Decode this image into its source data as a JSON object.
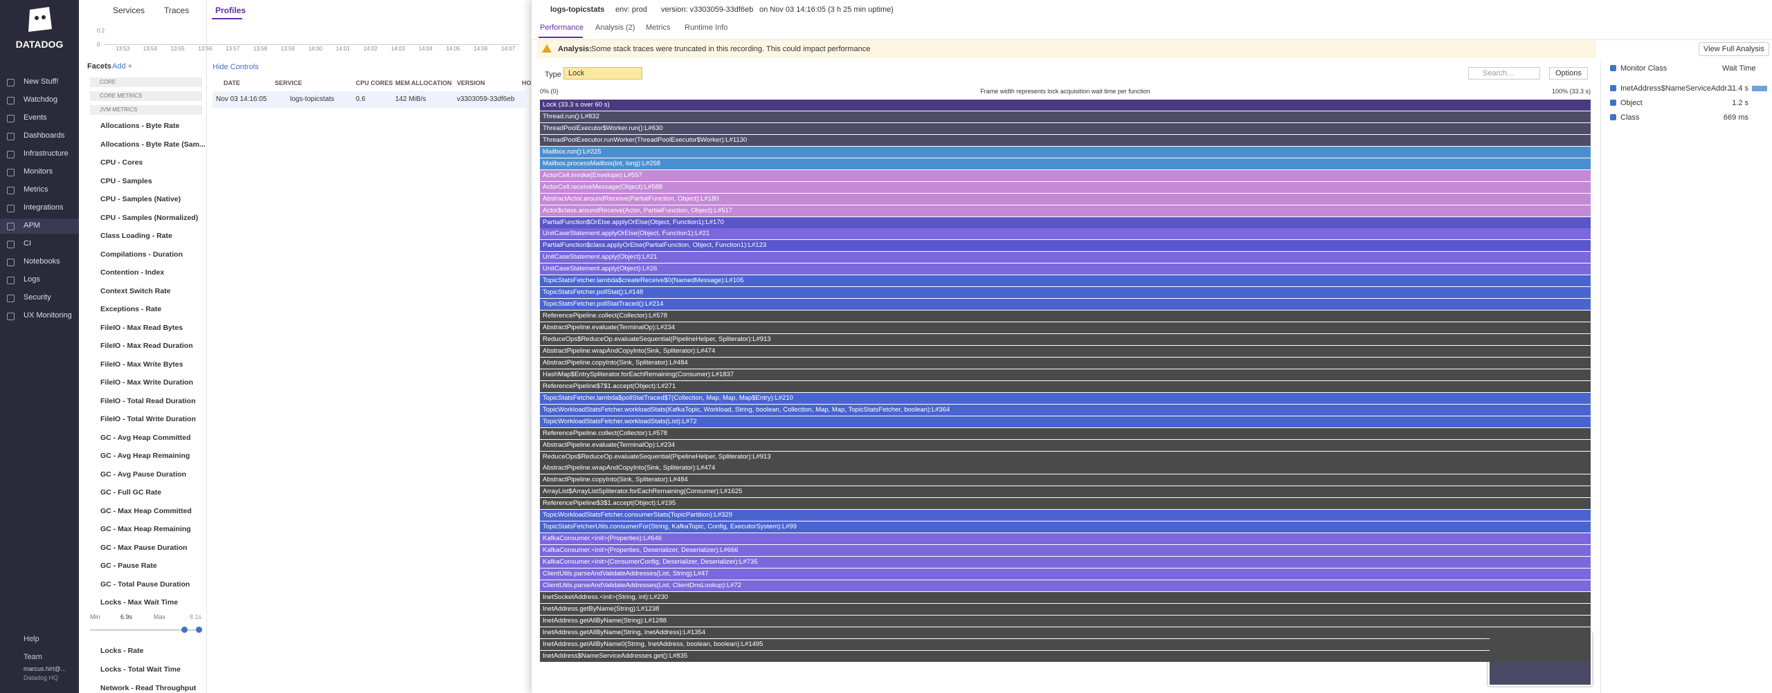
{
  "nav": {
    "logo": "DATADOG",
    "items": [
      "New Stuff!",
      "Watchdog",
      "Events",
      "Dashboards",
      "Infrastructure",
      "Monitors",
      "Metrics",
      "Integrations",
      "APM",
      "CI",
      "Notebooks",
      "Logs",
      "Security",
      "UX Monitoring"
    ],
    "bottom": [
      "Help",
      "Team"
    ],
    "user": "marcus.hirt@...",
    "org": "Datadog HQ"
  },
  "top_tabs": [
    "Services",
    "Traces",
    "Profiles"
  ],
  "timeline": {
    "y_labels": [
      "0.2",
      "0"
    ],
    "x_labels": [
      "13:53",
      "13:54",
      "13:55",
      "13:56",
      "13:57",
      "13:58",
      "13:59",
      "14:00",
      "14:01",
      "14:02",
      "14:03",
      "14:04",
      "14:05",
      "14:06",
      "14:07"
    ]
  },
  "facets": {
    "title": "Facets",
    "add": "Add +",
    "sections": [
      "CORE",
      "CORE METRICS",
      "JVM METRICS"
    ],
    "items_top": [
      "Allocations - Byte Rate",
      "Allocations - Byte Rate (Sam...",
      "CPU - Cores",
      "CPU - Samples",
      "CPU - Samples (Native)",
      "CPU - Samples (Normalized)",
      "Class Loading - Rate",
      "Compilations - Duration",
      "Contention - Index",
      "Context Switch Rate",
      "Exceptions - Rate",
      "FileIO - Max Read Bytes",
      "FileIO - Max Read Duration",
      "FileIO - Max Write Bytes",
      "FileIO - Max Write Duration",
      "FileIO - Total Read Duration",
      "FileIO - Total Write Duration",
      "GC - Avg Heap Committed",
      "GC - Avg Heap Remaining",
      "GC - Avg Pause Duration",
      "GC - Full GC Rate",
      "GC - Max Heap Committed",
      "GC - Max Heap Remaining",
      "GC - Max Pause Duration",
      "GC - Pause Rate",
      "GC - Total Pause Duration"
    ],
    "expanded": {
      "name": "Locks - Max Wait Time",
      "min_label": "Min",
      "min": "6.9s",
      "max_label": "Max",
      "max": "8.1s"
    },
    "items_bottom": [
      "Locks - Rate",
      "Locks - Total Wait Time",
      "Network - Read Throughput"
    ]
  },
  "table": {
    "hide_controls": "Hide Controls",
    "headers": [
      "DATE",
      "SERVICE",
      "CPU CORES",
      "MEM ALLOCATION",
      "VERSION",
      "HO"
    ],
    "row": [
      "Nov 03 14:16:05",
      "logs-topicstats",
      "0.6",
      "142 MiB/s",
      "v3303059-33df6eb"
    ]
  },
  "panel": {
    "service": "logs-topicstats",
    "env": "env: prod",
    "version": "version: v3303059-33df6eb",
    "time": "on Nov 03 14:16:05 (3 h 25 min uptime)",
    "tabs": [
      "Performance",
      "Analysis (2)",
      "Metrics",
      "Runtime Info"
    ],
    "analysis_label": "Analysis:",
    "analysis_text": "Some stack traces were truncated in this recording. This could impact performance",
    "view_full": "View Full Analysis",
    "type_label": "Type",
    "type_value": "Lock",
    "search": "Search...",
    "options": "Options",
    "scale_left": "0% (0)",
    "scale_center": "Frame width represents lock acquisition wait time per function",
    "scale_right": "100% (33.3 s)"
  },
  "flame": [
    {
      "label": "Lock (33.3 s over 60 s)",
      "color": "#4a3a82"
    },
    {
      "label": "Thread.run():L#832",
      "color": "#4e4c66"
    },
    {
      "label": "ThreadPoolExecutor$Worker.run():L#630",
      "color": "#4e4c66"
    },
    {
      "label": "ThreadPoolExecutor.runWorker(ThreadPoolExecutor$Worker):L#1130",
      "color": "#4e4c66"
    },
    {
      "label": "Mailbox.run():L#225",
      "color": "#4b8fd0"
    },
    {
      "label": "Mailbox.processMailbox(int, long):L#258",
      "color": "#4b8fd0"
    },
    {
      "label": "ActorCell.invoke(Envelope):L#557",
      "color": "#c48ad6"
    },
    {
      "label": "ActorCell.receiveMessage(Object):L#588",
      "color": "#c48ad6"
    },
    {
      "label": "AbstractActor.aroundReceive(PartialFunction, Object):L#180",
      "color": "#c48ad6"
    },
    {
      "label": "Actor$class.aroundReceive(Actor, PartialFunction, Object):L#517",
      "color": "#c48ad6"
    },
    {
      "label": "PartialFunction$OrElse.applyOrElse(Object, Function1):L#170",
      "color": "#5856c8"
    },
    {
      "label": "UnitCaseStatement.applyOrElse(Object, Function1):L#21",
      "color": "#7b68dd"
    },
    {
      "label": "PartialFunction$class.applyOrElse(PartialFunction, Object, Function1):L#123",
      "color": "#5856c8"
    },
    {
      "label": "UnitCaseStatement.apply(Object):L#21",
      "color": "#7b68dd"
    },
    {
      "label": "UnitCaseStatement.apply(Object):L#26",
      "color": "#7b68dd"
    },
    {
      "label": "TopicStatsFetcher.lambda$createReceive$0(NamedMessage):L#105",
      "color": "#4a64cf"
    },
    {
      "label": "TopicStatsFetcher.pollStat():L#148",
      "color": "#4a64cf"
    },
    {
      "label": "TopicStatsFetcher.pollStatTraced():L#214",
      "color": "#4a64cf"
    },
    {
      "label": "ReferencePipeline.collect(Collector):L#578",
      "color": "#4a4a4a"
    },
    {
      "label": "AbstractPipeline.evaluate(TerminalOp):L#234",
      "color": "#4a4a4a"
    },
    {
      "label": "ReduceOps$ReduceOp.evaluateSequential(PipelineHelper, Spliterator):L#913",
      "color": "#4a4a4a"
    },
    {
      "label": "AbstractPipeline.wrapAndCopyInto(Sink, Spliterator):L#474",
      "color": "#4a4a4a"
    },
    {
      "label": "AbstractPipeline.copyInto(Sink, Spliterator):L#484",
      "color": "#4a4a4a"
    },
    {
      "label": "HashMap$EntrySpliterator.forEachRemaining(Consumer):L#1837",
      "color": "#4a4a4a"
    },
    {
      "label": "ReferencePipeline$7$1.accept(Object):L#271",
      "color": "#4a4a4a"
    },
    {
      "label": "TopicStatsFetcher.lambda$pollStatTraced$7(Collection, Map, Map, Map$Entry):L#210",
      "color": "#4a64cf"
    },
    {
      "label": "TopicWorkloadStatsFetcher.workloadStats(KafkaTopic, Workload, String, boolean, Collection, Map, Map, TopicStatsFetcher, boolean):L#364",
      "color": "#4a64cf"
    },
    {
      "label": "TopicWorkloadStatsFetcher.workloadStats(List):L#72",
      "color": "#4a64cf"
    },
    {
      "label": "ReferencePipeline.collect(Collector):L#578",
      "color": "#4a4a4a"
    },
    {
      "label": "AbstractPipeline.evaluate(TerminalOp):L#234",
      "color": "#4a4a4a"
    },
    {
      "label": "ReduceOps$ReduceOp.evaluateSequential(PipelineHelper, Spliterator):L#913",
      "color": "#4a4a4a"
    },
    {
      "label": "AbstractPipeline.wrapAndCopyInto(Sink, Spliterator):L#474",
      "color": "#4a4a4a"
    },
    {
      "label": "AbstractPipeline.copyInto(Sink, Spliterator):L#484",
      "color": "#4a4a4a"
    },
    {
      "label": "ArrayList$ArrayListSpliterator.forEachRemaining(Consumer):L#1625",
      "color": "#4a4a4a"
    },
    {
      "label": "ReferencePipeline$3$1.accept(Object):L#195",
      "color": "#4a4a4a"
    },
    {
      "label": "TopicWorkloadStatsFetcher.consumerStats(TopicPartition):L#329",
      "color": "#4a64cf"
    },
    {
      "label": "TopicStatsFetcherUtils.consumerFor(String, KafkaTopic, Config, ExecutorSystem):L#99",
      "color": "#4a64cf"
    },
    {
      "label": "KafkaConsumer.<init>(Properties):L#646",
      "color": "#7b68dd"
    },
    {
      "label": "KafkaConsumer.<init>(Properties, Deserializer, Deserializer):L#666",
      "color": "#7b68dd"
    },
    {
      "label": "KafkaConsumer.<init>(ConsumerConfig, Deserializer, Deserializer):L#735",
      "color": "#7b68dd"
    },
    {
      "label": "ClientUtils.parseAndValidateAddresses(List, String):L#47",
      "color": "#7b68dd"
    },
    {
      "label": "ClientUtils.parseAndValidateAddresses(List, ClientDnsLookup):L#72",
      "color": "#7b68dd"
    },
    {
      "label": "InetSocketAddress.<init>(String, int):L#230",
      "color": "#4a4a4a"
    },
    {
      "label": "InetAddress.getByName(String):L#1238",
      "color": "#4a4a4a"
    },
    {
      "label": "InetAddress.getAllByName(String):L#1288",
      "color": "#4a4a4a"
    },
    {
      "label": "InetAddress.getAllByName(String, InetAddress):L#1354",
      "color": "#4a4a4a"
    },
    {
      "label": "InetAddress.getAllByName0(String, InetAddress, boolean, boolean):L#1495",
      "color": "#4a4a4a"
    },
    {
      "label": "InetAddress$NameServiceAddresses.get():L#835",
      "color": "#4a4a4a"
    }
  ],
  "legend": {
    "header": "Monitor Class",
    "sort": "Wait Time",
    "entries": [
      {
        "name": "InetAddress$NameServiceAddr...",
        "value": "31.4 s"
      },
      {
        "name": "Object",
        "value": "1.2 s"
      },
      {
        "name": "Class",
        "value": "669 ms"
      }
    ]
  }
}
